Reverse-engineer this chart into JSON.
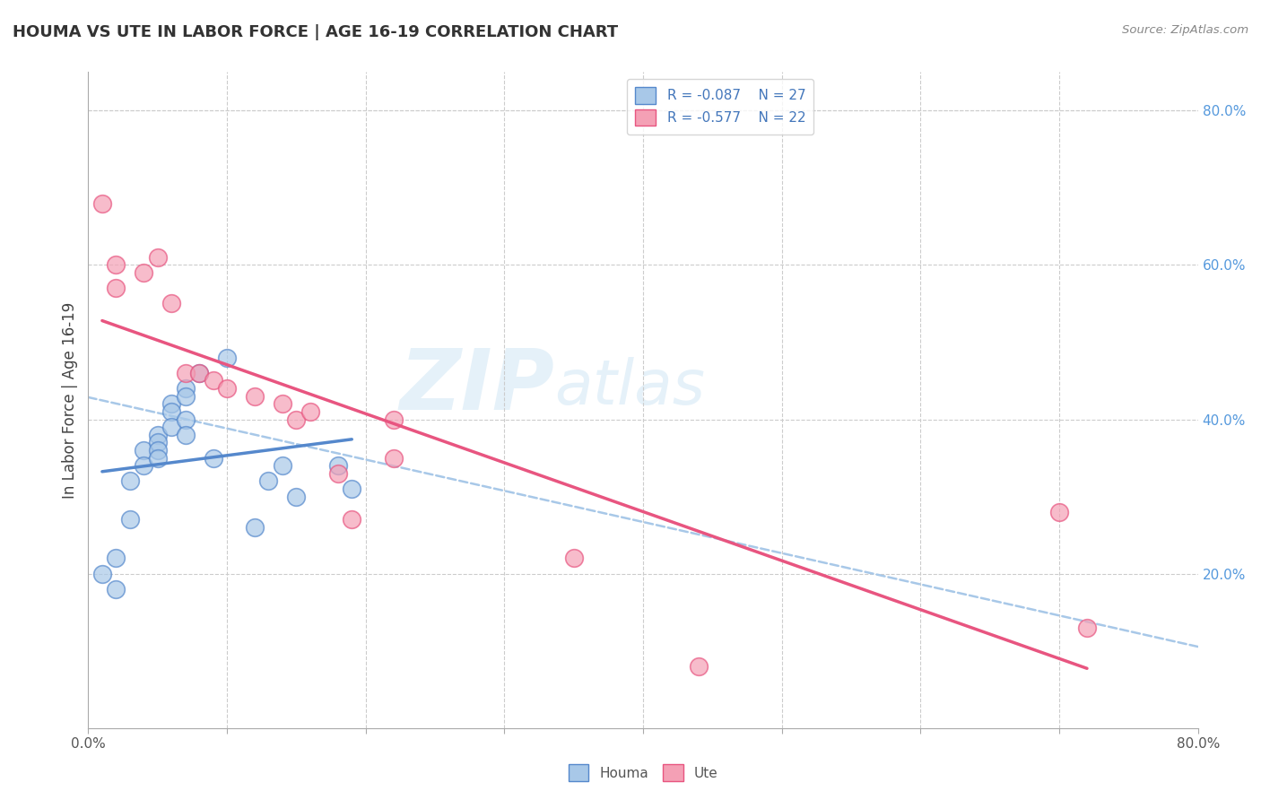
{
  "title": "HOUMA VS UTE IN LABOR FORCE | AGE 16-19 CORRELATION CHART",
  "source": "Source: ZipAtlas.com",
  "ylabel": "In Labor Force | Age 16-19",
  "xlim": [
    0.0,
    0.8
  ],
  "ylim": [
    0.0,
    0.85
  ],
  "houma_R": "-0.087",
  "houma_N": "27",
  "ute_R": "-0.577",
  "ute_N": "22",
  "houma_color": "#a8c8e8",
  "ute_color": "#f4a0b5",
  "houma_line_color": "#5588cc",
  "ute_line_color": "#e85580",
  "trend_line_color": "#a8c8e8",
  "houma_x": [
    0.01,
    0.02,
    0.02,
    0.03,
    0.03,
    0.04,
    0.04,
    0.05,
    0.05,
    0.05,
    0.05,
    0.06,
    0.06,
    0.06,
    0.07,
    0.07,
    0.07,
    0.07,
    0.08,
    0.09,
    0.1,
    0.12,
    0.13,
    0.14,
    0.15,
    0.18,
    0.19
  ],
  "houma_y": [
    0.2,
    0.18,
    0.22,
    0.32,
    0.27,
    0.36,
    0.34,
    0.38,
    0.37,
    0.36,
    0.35,
    0.42,
    0.41,
    0.39,
    0.44,
    0.43,
    0.4,
    0.38,
    0.46,
    0.35,
    0.48,
    0.26,
    0.32,
    0.34,
    0.3,
    0.34,
    0.31
  ],
  "ute_x": [
    0.01,
    0.02,
    0.02,
    0.04,
    0.05,
    0.06,
    0.07,
    0.08,
    0.09,
    0.1,
    0.12,
    0.14,
    0.15,
    0.16,
    0.18,
    0.19,
    0.22,
    0.22,
    0.35,
    0.44,
    0.7,
    0.72
  ],
  "ute_y": [
    0.68,
    0.6,
    0.57,
    0.59,
    0.61,
    0.55,
    0.46,
    0.46,
    0.45,
    0.44,
    0.43,
    0.42,
    0.4,
    0.41,
    0.33,
    0.27,
    0.4,
    0.35,
    0.22,
    0.08,
    0.28,
    0.13
  ],
  "background_color": "#ffffff",
  "grid_color": "#cccccc",
  "title_fontsize": 13,
  "axis_label_fontsize": 12,
  "tick_fontsize": 11,
  "legend_fontsize": 11,
  "watermark_zip": "ZIP",
  "watermark_atlas": "atlas"
}
